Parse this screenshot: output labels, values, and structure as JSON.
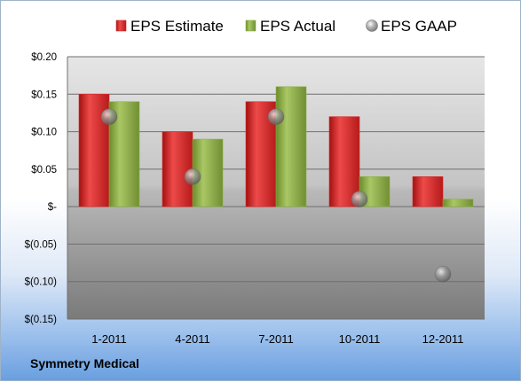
{
  "company_label": "Symmetry Medical",
  "colors": {
    "estimate": "#d42a2a",
    "actual": "#8caf45",
    "gaap": "#9a9a9a"
  },
  "chart_data": {
    "type": "bar",
    "categories": [
      "1-2011",
      "4-2011",
      "7-2011",
      "10-2011",
      "12-2011"
    ],
    "series": [
      {
        "name": "EPS Estimate",
        "kind": "bar",
        "values": [
          0.15,
          0.1,
          0.14,
          0.12,
          0.04
        ]
      },
      {
        "name": "EPS Actual",
        "kind": "bar",
        "values": [
          0.14,
          0.09,
          0.16,
          0.04,
          0.01
        ]
      },
      {
        "name": "EPS GAAP",
        "kind": "marker",
        "values": [
          0.12,
          0.04,
          0.12,
          0.01,
          -0.09
        ]
      }
    ],
    "y_ticks": [
      0.2,
      0.15,
      0.1,
      0.05,
      0,
      -0.05,
      -0.1,
      -0.15
    ],
    "y_tick_labels": [
      "$0.20",
      "$0.15",
      "$0.10",
      "$0.05",
      "$-",
      "$(0.05)",
      "$(0.10)",
      "$(0.15)"
    ],
    "ylim": [
      -0.15,
      0.2
    ],
    "grid": true,
    "legend_position": "top"
  }
}
